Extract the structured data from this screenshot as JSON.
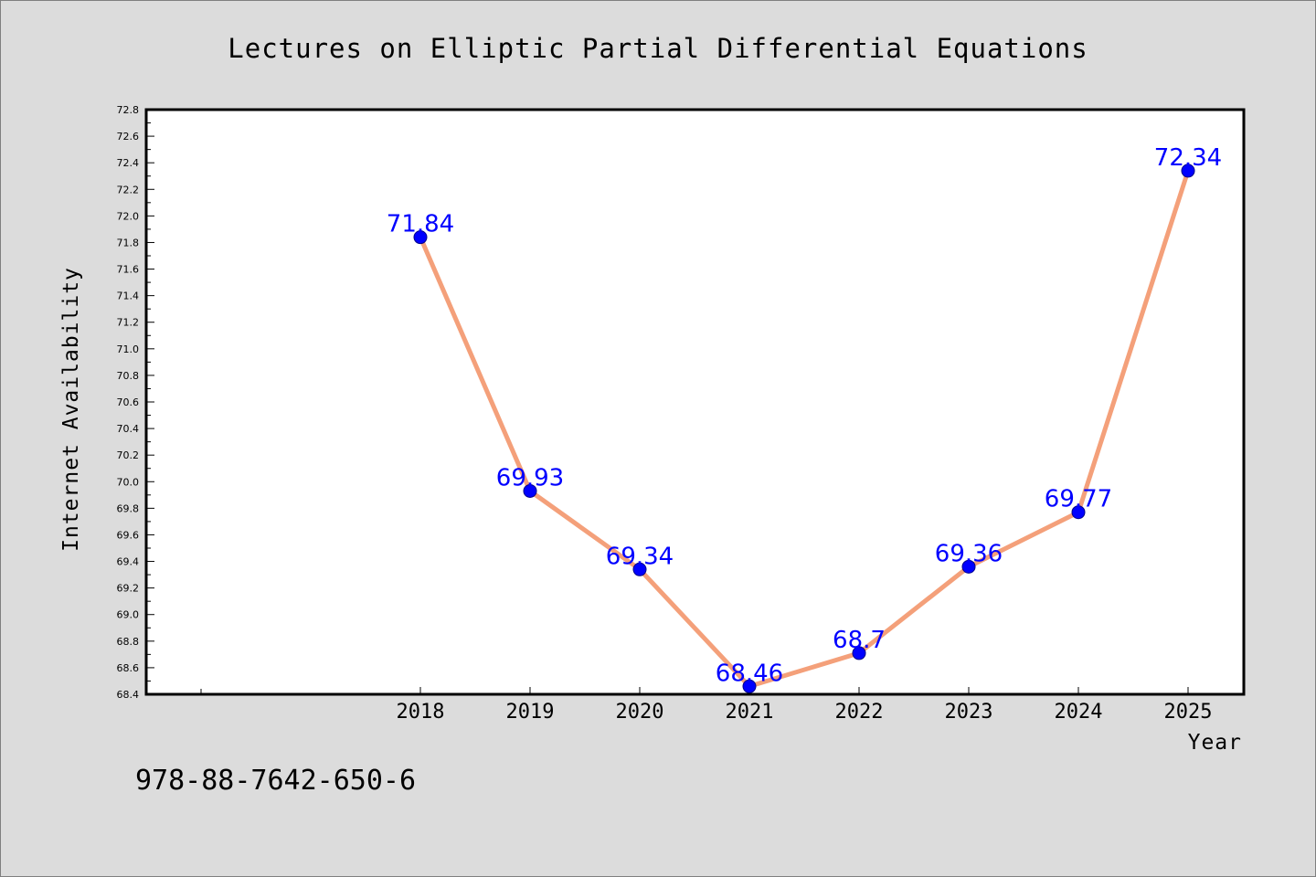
{
  "chart_data": {
    "type": "line",
    "title": "Lectures on Elliptic Partial Differential Equations",
    "xlabel": "Year",
    "ylabel": "Internet Availability",
    "categories": [
      "2018",
      "2019",
      "2020",
      "2021",
      "2022",
      "2023",
      "2024",
      "2025"
    ],
    "values": [
      71.84,
      69.93,
      69.34,
      68.46,
      68.71,
      69.36,
      69.77,
      72.34
    ],
    "data_labels": [
      "71.84",
      "69.93",
      "69.34",
      "68.46",
      "68.7",
      "69.36",
      "69.77",
      "72.34"
    ],
    "ylim": [
      68.4,
      72.8
    ],
    "y_ticks": [
      "68.4",
      "68.6",
      "68.8",
      "69.0",
      "69.2",
      "69.4",
      "69.6",
      "69.8",
      "70.0",
      "70.2",
      "70.4",
      "70.6",
      "70.8",
      "71.0",
      "71.2",
      "71.4",
      "71.6",
      "71.8",
      "72.0",
      "72.2",
      "72.4",
      "72.6",
      "72.8"
    ],
    "grid": false,
    "legend": "none",
    "colors": {
      "line": "#f4a07a",
      "marker": "#0000ff",
      "data_label": "#0000ff",
      "background": "#dcdcdc",
      "plot_background": "#ffffff"
    }
  },
  "footer": {
    "code": "978-88-7642-650-6"
  }
}
